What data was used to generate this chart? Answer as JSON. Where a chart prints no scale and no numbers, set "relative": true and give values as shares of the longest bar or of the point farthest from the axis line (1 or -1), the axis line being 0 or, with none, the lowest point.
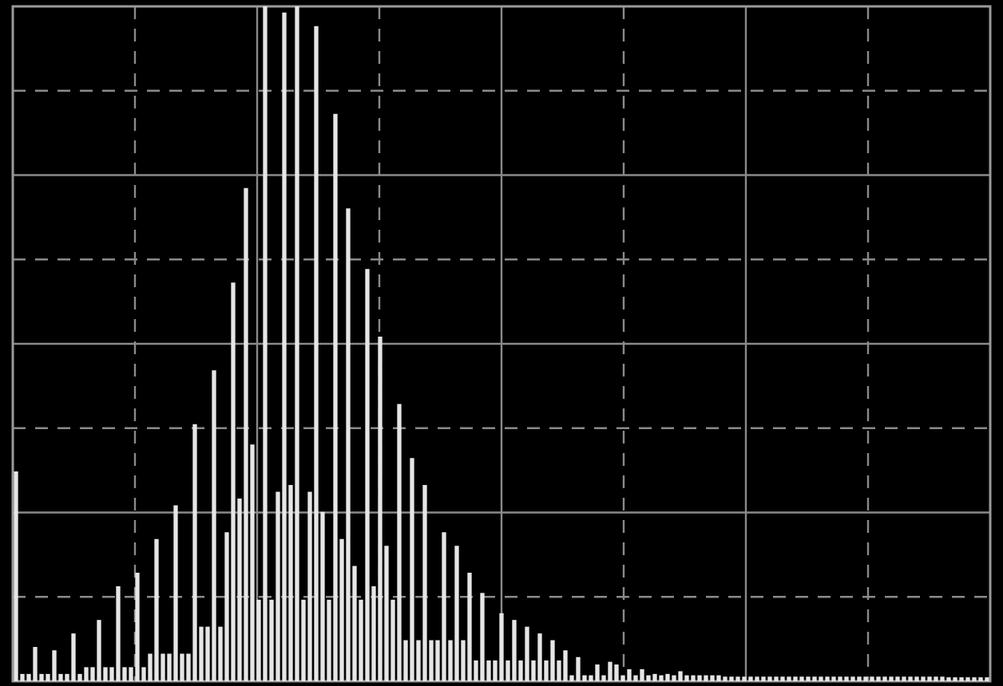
{
  "chart_data": {
    "type": "bar",
    "relative": true,
    "grid": true,
    "color": "#e6e6e6",
    "categories": [
      null,
      null,
      null,
      null,
      null,
      null,
      null,
      null,
      null,
      null,
      null,
      null,
      null,
      null,
      null,
      null,
      null,
      null,
      null,
      null,
      null,
      null,
      null,
      null,
      null,
      null,
      null,
      null,
      null,
      null,
      null,
      null,
      null,
      null,
      null,
      null,
      null,
      null,
      null,
      null,
      null,
      null,
      null,
      null,
      null,
      null,
      null,
      null,
      null,
      null,
      null,
      null,
      null,
      null,
      null,
      null,
      null,
      null,
      null,
      null,
      null,
      null,
      null,
      null,
      null,
      null,
      null,
      null,
      null,
      null,
      null,
      null,
      null,
      null,
      null,
      null,
      null,
      null,
      null,
      null,
      null,
      null,
      null,
      null,
      null,
      null,
      null,
      null,
      null,
      null,
      null,
      null,
      null,
      null,
      null,
      null,
      null,
      null,
      null,
      null,
      null,
      null,
      null,
      null,
      null,
      null,
      null,
      null,
      null,
      null,
      null,
      null,
      null,
      null,
      null,
      null,
      null,
      null,
      null,
      null,
      null,
      null,
      null,
      null,
      null,
      null,
      null,
      null,
      null,
      null,
      null,
      null,
      null,
      null,
      null,
      null,
      null,
      null,
      null,
      null,
      null,
      null,
      null,
      null,
      null,
      null,
      null,
      null,
      null,
      null,
      null,
      null,
      null
    ],
    "values": [
      0.31,
      0.01,
      0.01,
      0.05,
      0.01,
      0.01,
      0.045,
      0.01,
      0.01,
      0.07,
      0.01,
      0.02,
      0.02,
      0.09,
      0.02,
      0.02,
      0.14,
      0.02,
      0.02,
      0.16,
      0.02,
      0.04,
      0.21,
      0.04,
      0.04,
      0.26,
      0.04,
      0.04,
      0.38,
      0.08,
      0.08,
      0.46,
      0.08,
      0.22,
      0.59,
      0.27,
      0.73,
      0.35,
      0.12,
      1.0,
      0.12,
      0.28,
      0.99,
      0.29,
      1.0,
      0.12,
      0.28,
      0.97,
      0.25,
      0.12,
      0.84,
      0.21,
      0.7,
      0.17,
      0.12,
      0.61,
      0.14,
      0.51,
      0.2,
      0.12,
      0.41,
      0.06,
      0.33,
      0.06,
      0.29,
      0.06,
      0.06,
      0.22,
      0.06,
      0.2,
      0.06,
      0.16,
      0.03,
      0.13,
      0.03,
      0.03,
      0.1,
      0.03,
      0.09,
      0.03,
      0.08,
      0.03,
      0.07,
      0.03,
      0.06,
      0.03,
      0.045,
      0.008,
      0.035,
      0.008,
      0.008,
      0.024,
      0.008,
      0.028,
      0.024,
      0.008,
      0.017,
      0.008,
      0.017,
      0.008,
      0.01,
      0.008,
      0.01,
      0.008,
      0.014,
      0.008,
      0.008,
      0.008,
      0.008,
      0.008,
      0.008,
      0.006,
      0.006,
      0.006,
      0.006,
      0.006,
      0.006,
      0.006,
      0.006,
      0.006,
      0.006,
      0.006,
      0.006,
      0.006,
      0.006,
      0.006,
      0.006,
      0.006,
      0.006,
      0.006,
      0.006,
      0.006,
      0.006,
      0.006,
      0.006,
      0.006,
      0.006,
      0.006,
      0.006,
      0.006,
      0.006,
      0.006,
      0.006,
      0.006,
      0.006,
      0.006,
      0.005,
      0.005,
      0.005,
      0.005,
      0.005,
      0.005,
      0.005
    ]
  }
}
